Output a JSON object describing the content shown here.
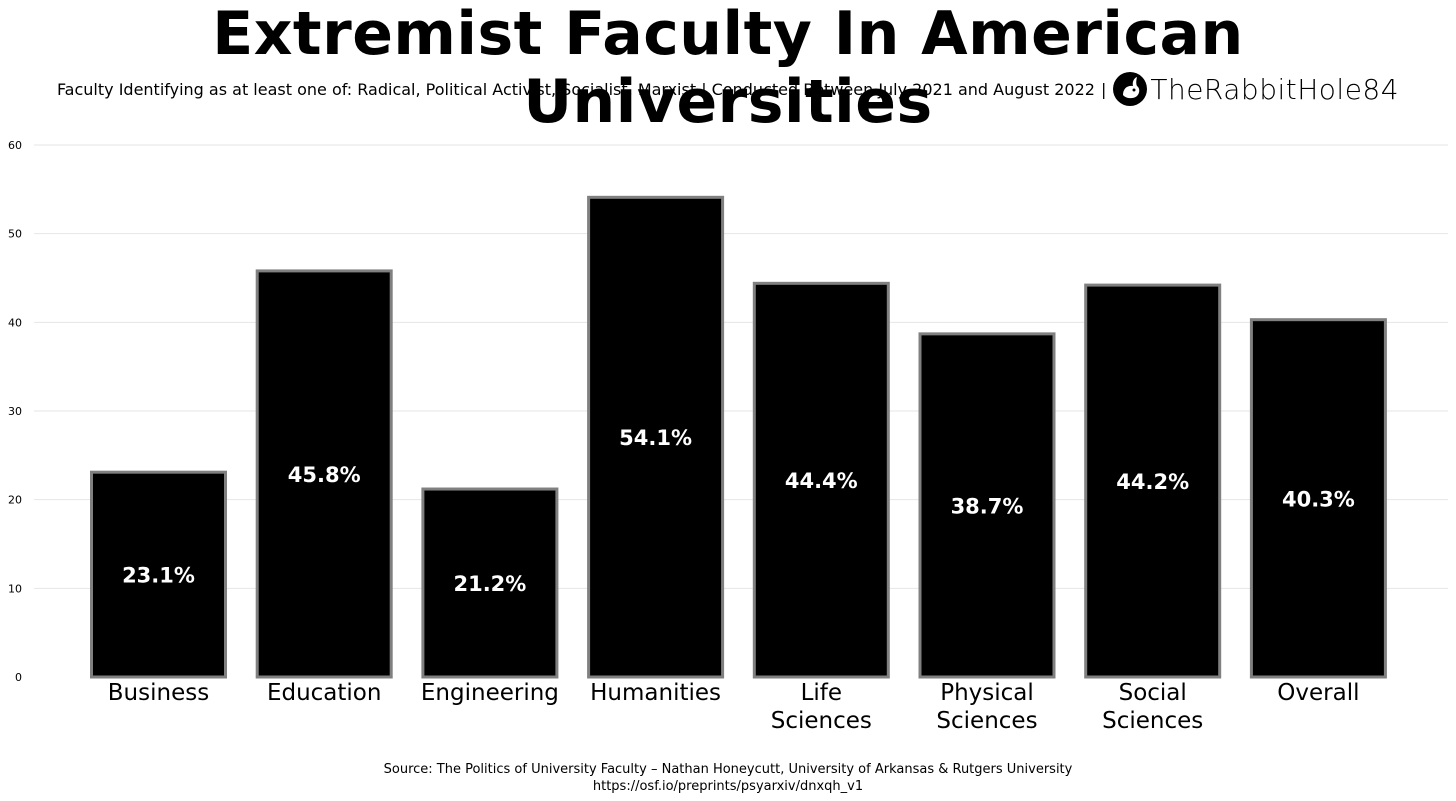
{
  "title": "Extremist Faculty In American Universities",
  "subtitle": "Faculty Identifying as at least one of: Radical, Political Activist, Socialist, Marxist | Conducted Between July 2021 and August 2022",
  "subtitle_separator": "|",
  "brand": {
    "name": "TheRabbitHole84",
    "icon": "rabbit-logo-icon"
  },
  "colors": {
    "bar_fill": "#000000",
    "bar_stroke": "#808080",
    "label_text": "#ffffff",
    "grid": "#e6e6e6",
    "background": "#ffffff"
  },
  "chart_data": {
    "type": "bar",
    "title": "Extremist Faculty In American Universities",
    "categories": [
      [
        "Business"
      ],
      [
        "Education"
      ],
      [
        "Engineering"
      ],
      [
        "Humanities"
      ],
      [
        "Life",
        "Sciences"
      ],
      [
        "Physical",
        "Sciences"
      ],
      [
        "Social",
        "Sciences"
      ],
      [
        "Overall"
      ]
    ],
    "values": [
      23.1,
      45.8,
      21.2,
      54.1,
      44.4,
      38.7,
      44.2,
      40.3
    ],
    "data_labels": [
      "23.1%",
      "45.8%",
      "21.2%",
      "54.1%",
      "44.4%",
      "38.7%",
      "44.2%",
      "40.3%"
    ],
    "yticks": [
      0,
      10,
      20,
      30,
      40,
      50,
      60
    ],
    "ylim": [
      0,
      60
    ],
    "xlabel": "",
    "ylabel": "",
    "grid": true,
    "legend": "none"
  },
  "source": {
    "line1": "Source: The Politics of University Faculty – Nathan Honeycutt, University of Arkansas & Rutgers University",
    "line2": "https://osf.io/preprints/psyarxiv/dnxqh_v1"
  }
}
